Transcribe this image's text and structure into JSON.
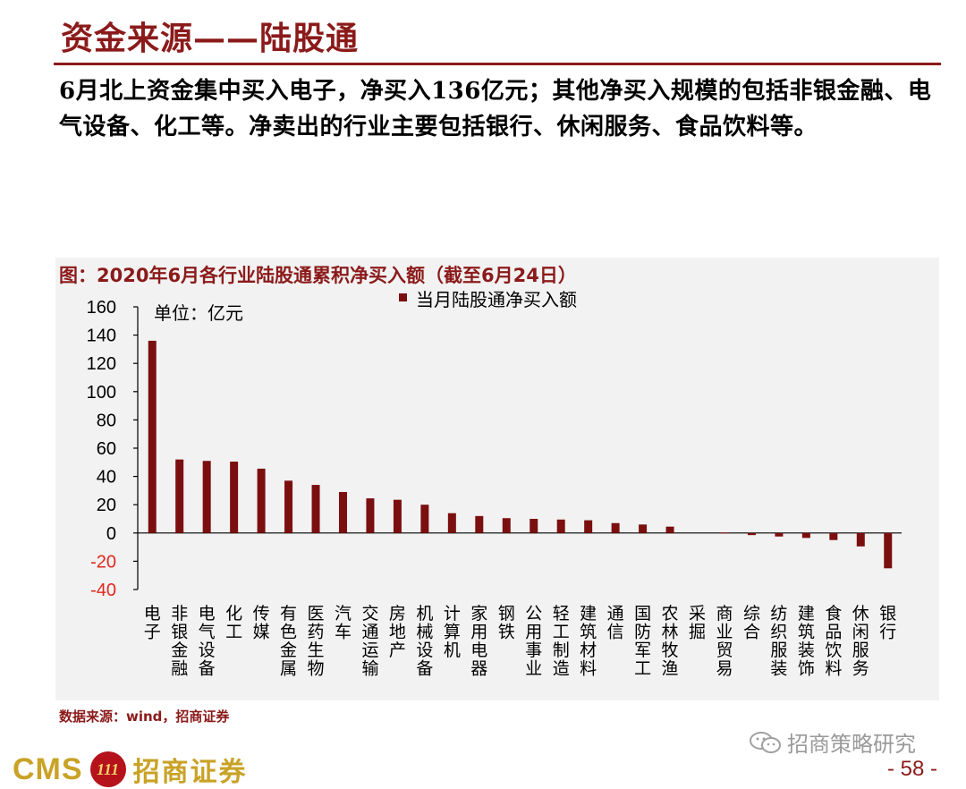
{
  "slide": {
    "title": "资金来源——陆股通",
    "lead": "6月北上资金集中买入电子，净买入136亿元；其他净买入规模的包括非银金融、电气设备、化工等。净卖出的行业主要包括银行、休闲服务、食品饮料等。",
    "source": "数据来源：wind，招商证券",
    "wechat": "招商策略研究",
    "brand_en": "CMS",
    "brand_cn": "招商证券",
    "logo_text": "111",
    "page_number": "- 58 -"
  },
  "colors": {
    "accent": "#8b1a1a",
    "bar": "#7b0f0f",
    "negative_tick": "#e0281e",
    "gold": "#c9a227"
  },
  "chart_data": {
    "type": "bar",
    "title": "图：2020年6月各行业陆股通累积净买入额（截至6月24日）",
    "unit_label": "单位：亿元",
    "legend": "当月陆股通净买入额",
    "legend_position": "top-center",
    "ylim": [
      -40,
      160
    ],
    "yticks": [
      160,
      140,
      120,
      100,
      80,
      60,
      40,
      20,
      0,
      -20,
      -40
    ],
    "grid": false,
    "categories": [
      "电子",
      "非银金融",
      "电气设备",
      "化工",
      "传媒",
      "有色金属",
      "医药生物",
      "汽车",
      "交通运输",
      "房地产",
      "机械设备",
      "计算机",
      "家用电器",
      "钢铁",
      "公用事业",
      "轻工制造",
      "建筑材料",
      "通信",
      "国防军工",
      "农林牧渔",
      "采掘",
      "商业贸易",
      "综合",
      "纺织服装",
      "建筑装饰",
      "食品饮料",
      "休闲服务",
      "银行"
    ],
    "series": [
      {
        "name": "当月陆股通净买入额",
        "values": [
          136,
          52,
          51,
          50.5,
          45.5,
          37,
          34,
          29,
          24.5,
          23.5,
          20,
          14,
          12,
          10.5,
          10,
          9.5,
          9,
          7,
          6,
          4.5,
          0,
          0.3,
          -1.5,
          -2.5,
          -3.5,
          -5,
          -9.5,
          -25
        ]
      }
    ]
  }
}
